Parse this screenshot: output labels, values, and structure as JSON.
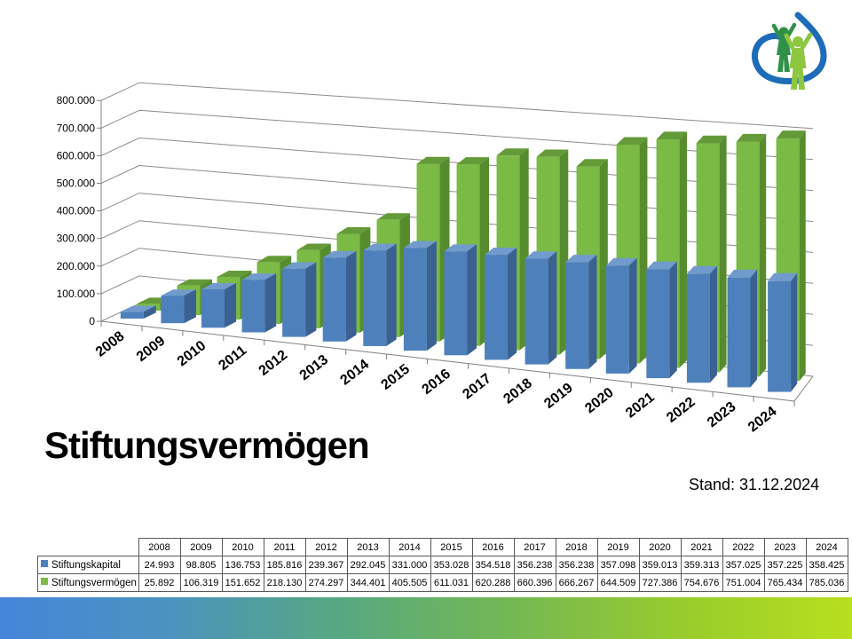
{
  "slide": {
    "title": "Stiftungsvermögen",
    "stand": "Stand: 31.12.2024"
  },
  "chart_data": {
    "type": "bar",
    "style": "3d-column",
    "title": "Stiftungsvermögen",
    "categories": [
      "2008",
      "2009",
      "2010",
      "2011",
      "2012",
      "2013",
      "2014",
      "2015",
      "2016",
      "2017",
      "2018",
      "2019",
      "2020",
      "2021",
      "2022",
      "2023",
      "2024"
    ],
    "series": [
      {
        "name": "Stiftungskapital",
        "values": [
          24993,
          98805,
          136753,
          185816,
          239367,
          292045,
          331000,
          353028,
          354518,
          356238,
          356238,
          357098,
          359013,
          359313,
          357025,
          357225,
          358425
        ]
      },
      {
        "name": "Stiftungsvermögen",
        "values": [
          25892,
          106319,
          151652,
          218130,
          274297,
          344401,
          405505,
          611031,
          620288,
          660396,
          666267,
          644509,
          727386,
          754676,
          751004,
          765434,
          785036
        ]
      }
    ],
    "xlabel": "",
    "ylabel": "",
    "ylim": [
      0,
      800000
    ],
    "ytick_step": 100000,
    "number_format": "thousands-dot",
    "grid": true,
    "legend_position": "table-left-column"
  },
  "colors": {
    "series_blue": {
      "front": "#4E81BC",
      "top": "#719BCC",
      "side": "#3A6191"
    },
    "series_green": {
      "front": "#7ABA45",
      "top": "#649A37",
      "side": "#568C2E"
    },
    "grid": "#8C8C8C",
    "axis": "#808080",
    "footer_gradient": [
      "#4685DA",
      "#4B93BE",
      "#57A881",
      "#74B853",
      "#98CC2C",
      "#B8DF1E"
    ],
    "logo": {
      "outline": "#1E6BB8",
      "figure_back": "#2F9148",
      "figure_front": "#8DC63F"
    }
  }
}
